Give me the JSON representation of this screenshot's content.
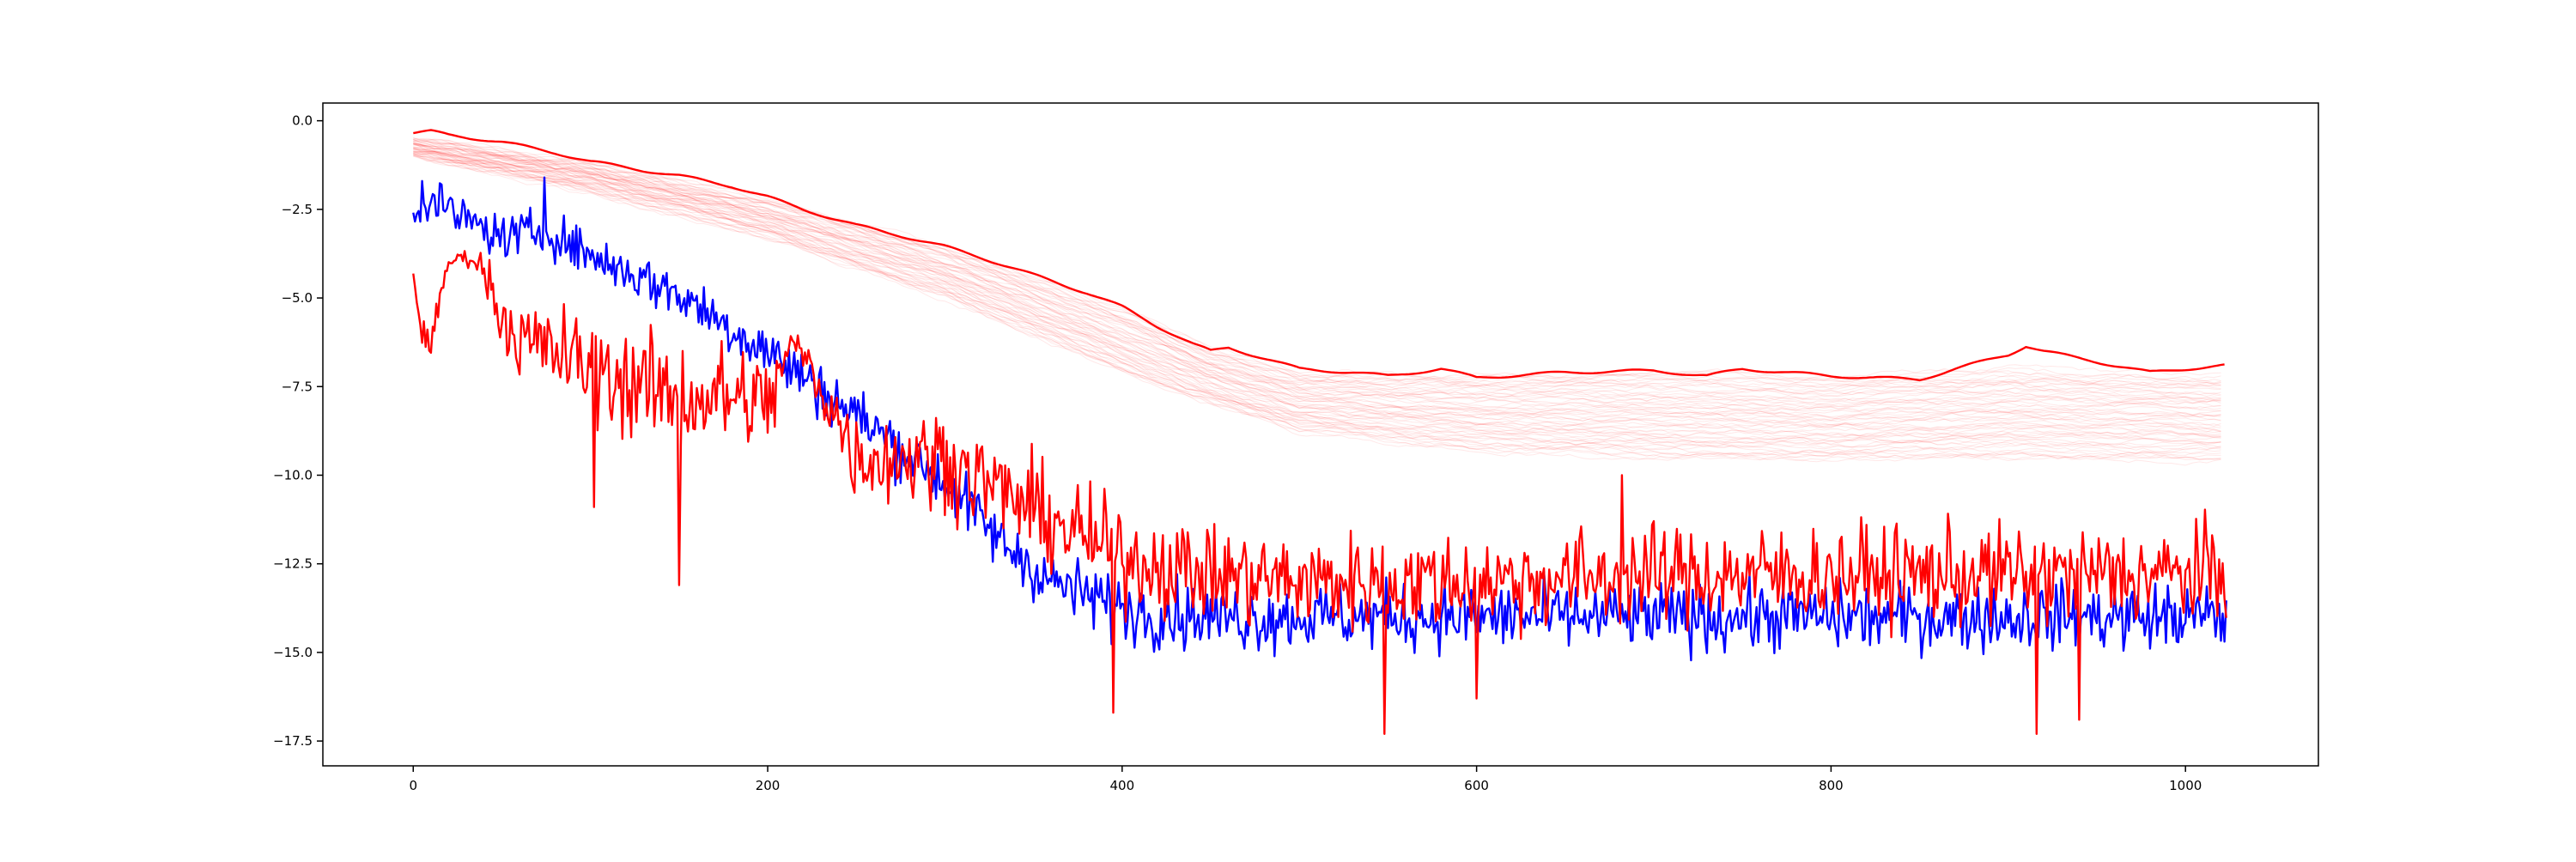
{
  "chart_data": {
    "type": "line",
    "title": "",
    "xlabel": "",
    "ylabel": "",
    "xlim": [
      -51,
      1075
    ],
    "ylim": [
      -18.2,
      0.5
    ],
    "grid": false,
    "legend": "none",
    "xticks": [
      0,
      200,
      400,
      600,
      800,
      1000
    ],
    "xtick_labels": [
      "0",
      "200",
      "400",
      "600",
      "800",
      "1000"
    ],
    "yticks": [
      0.0,
      -2.5,
      -5.0,
      -7.5,
      -10.0,
      -12.5,
      -15.0,
      -17.5
    ],
    "ytick_labels": [
      "0.0",
      "−2.5",
      "−5.0",
      "−7.5",
      "−10.0",
      "−12.5",
      "−15.0",
      "−17.5"
    ],
    "n_points": 1024,
    "colors": {
      "red": "#ff0000",
      "blue": "#0000ff",
      "faint": "#ff0000",
      "axes": "#000000"
    },
    "series": [
      {
        "color": "#ff0000",
        "style": "solid",
        "x": [
          0,
          10,
          20,
          50,
          80,
          100,
          130,
          150,
          180,
          200,
          220,
          250,
          280,
          300,
          320,
          350,
          380,
          400,
          420,
          440,
          450,
          460,
          480,
          500,
          530,
          550,
          580,
          600,
          650,
          700,
          730,
          750,
          800,
          850,
          870,
          900,
          910,
          920,
          950,
          980,
          1000,
          1023
        ],
        "y": [
          -0.35,
          -0.3,
          -0.4,
          -0.6,
          -0.9,
          -1.15,
          -1.4,
          -1.55,
          -1.85,
          -2.15,
          -2.5,
          -2.95,
          -3.3,
          -3.55,
          -3.85,
          -4.35,
          -4.85,
          -5.25,
          -5.8,
          -6.3,
          -6.5,
          -6.4,
          -6.7,
          -7.0,
          -7.1,
          -7.2,
          -7.0,
          -7.25,
          -7.1,
          -7.05,
          -7.2,
          -7.0,
          -7.2,
          -7.3,
          -7.0,
          -6.6,
          -6.35,
          -6.5,
          -6.8,
          -7.1,
          -7.0,
          -6.9
        ]
      },
      {
        "color": "#0000ff",
        "style": "noisy",
        "x": [
          0,
          10,
          30,
          50,
          75,
          100,
          150,
          200,
          250,
          300,
          330,
          360,
          400,
          450,
          500,
          600,
          700,
          800,
          900,
          1000,
          1023
        ],
        "y": [
          -2.5,
          -2.3,
          -2.8,
          -3.3,
          -3.1,
          -3.8,
          -4.9,
          -6.5,
          -8.3,
          -10.2,
          -11.8,
          -13.0,
          -13.8,
          -14.0,
          -14.0,
          -14.0,
          -14.0,
          -14.0,
          -14.0,
          -14.0,
          -14.0
        ],
        "noise": [
          0.4,
          0.5,
          0.55,
          0.6,
          0.6,
          0.6,
          0.7,
          0.8,
          0.8,
          0.8,
          0.8,
          0.85,
          0.9,
          0.9,
          0.9,
          0.9,
          0.9,
          0.9,
          0.9,
          0.9,
          0.9
        ],
        "min_y": -15.6,
        "spikes": [
          {
            "x": 74,
            "y": -1.6
          },
          {
            "x": 5,
            "y": -1.7
          },
          {
            "x": 16,
            "y": -1.8
          }
        ]
      },
      {
        "color": "#ff0000",
        "style": "noisy",
        "x": [
          0,
          5,
          10,
          20,
          30,
          40,
          50,
          60,
          80,
          100,
          130,
          150,
          180,
          200,
          215,
          230,
          250,
          300,
          350,
          400,
          450,
          500,
          600,
          700,
          800,
          900,
          1000,
          1023
        ],
        "y": [
          -4.4,
          -6.0,
          -6.2,
          -4.0,
          -3.8,
          -4.2,
          -5.5,
          -6.2,
          -6.5,
          -7.0,
          -7.5,
          -7.8,
          -7.8,
          -8.0,
          -6.2,
          -7.5,
          -9.5,
          -9.5,
          -11.0,
          -12.3,
          -12.8,
          -13.0,
          -13.0,
          -12.8,
          -12.8,
          -12.8,
          -12.8,
          -12.8
        ],
        "noise": [
          0.1,
          0.4,
          0.4,
          0.2,
          0.2,
          0.5,
          1.0,
          1.0,
          1.3,
          1.4,
          1.5,
          1.5,
          1.5,
          1.4,
          0.4,
          0.9,
          1.2,
          1.3,
          1.3,
          1.3,
          1.3,
          1.3,
          1.3,
          1.3,
          1.3,
          1.3,
          1.3,
          1.3
        ],
        "min_y": -17.3,
        "spikes": [
          {
            "x": 150,
            "y": -13.1
          },
          {
            "x": 102,
            "y": -10.9
          },
          {
            "x": 395,
            "y": -16.7
          },
          {
            "x": 548,
            "y": -17.3
          },
          {
            "x": 916,
            "y": -17.3
          },
          {
            "x": 682,
            "y": -10.0
          },
          {
            "x": 940,
            "y": -16.9
          },
          {
            "x": 600,
            "y": -16.3
          }
        ]
      }
    ],
    "faint_band": {
      "count": 60,
      "color": "#ff0000",
      "upper_x": [
        0,
        100,
        200,
        300,
        400,
        450,
        500,
        600,
        700,
        800,
        900,
        1023
      ],
      "upper_y": [
        -0.5,
        -1.2,
        -2.2,
        -3.6,
        -5.3,
        -6.4,
        -7.1,
        -7.2,
        -7.1,
        -7.2,
        -7.0,
        -7.2
      ],
      "lower_x": [
        0,
        100,
        200,
        300,
        400,
        450,
        500,
        600,
        700,
        800,
        900,
        1023
      ],
      "lower_y": [
        -1.0,
        -2.0,
        -3.3,
        -5.0,
        -7.1,
        -8.0,
        -8.8,
        -9.3,
        -9.5,
        -9.6,
        -9.5,
        -9.6
      ]
    }
  }
}
